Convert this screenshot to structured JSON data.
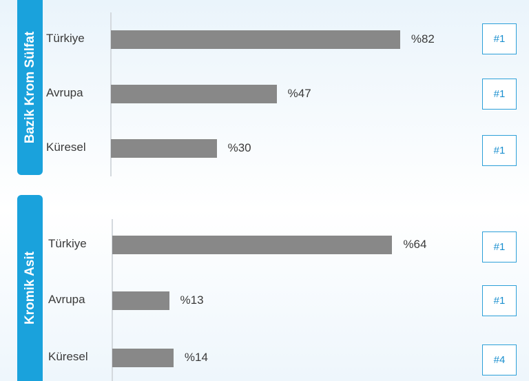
{
  "chart_data": [
    {
      "type": "bar",
      "title": "Bazik Krom Sülfat",
      "categories": [
        "Türkiye",
        "Avrupa",
        "Küresel"
      ],
      "values": [
        82,
        47,
        30
      ],
      "value_labels": [
        "%82",
        "%47",
        "%30"
      ],
      "ranks": [
        "#1",
        "#1",
        "#1"
      ],
      "xlim": [
        0,
        100
      ],
      "grid": false,
      "orientation": "horizontal"
    },
    {
      "type": "bar",
      "title": "Kromik Asit",
      "categories": [
        "Türkiye",
        "Avrupa",
        "Küresel"
      ],
      "values": [
        64,
        13,
        14
      ],
      "value_labels": [
        "%64",
        "%13",
        "%14"
      ],
      "ranks": [
        "#1",
        "#1",
        "#4"
      ],
      "xlim": [
        0,
        100
      ],
      "grid": false,
      "orientation": "horizontal"
    }
  ],
  "colors": {
    "accent": "#1aa2dc",
    "bar": "#888888",
    "rank_border": "#2b9fd8",
    "rank_text": "#1a8fcf"
  }
}
